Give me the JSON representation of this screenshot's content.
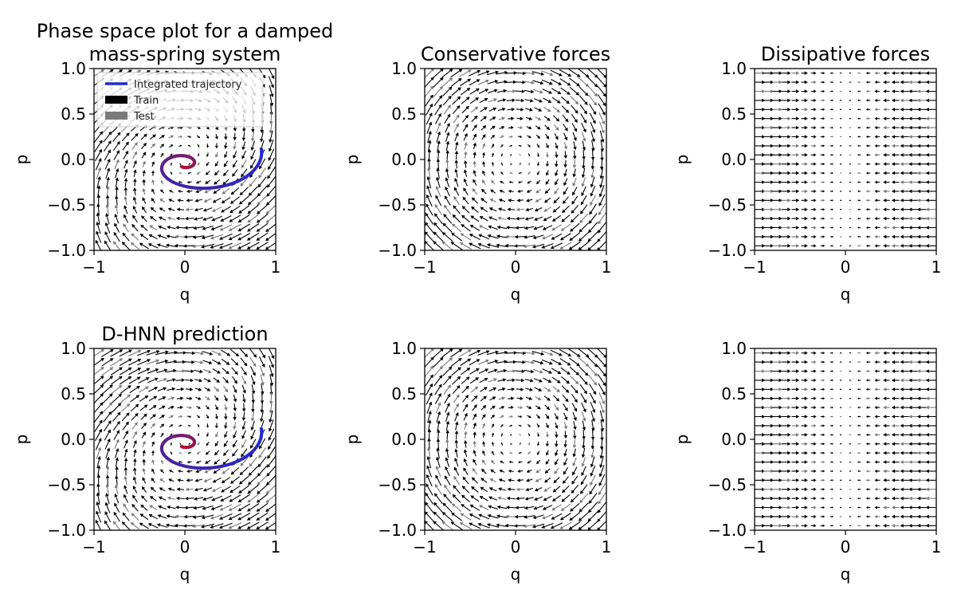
{
  "figure": {
    "background": "#ffffff",
    "train_color": "#000000",
    "test_color": "#7a7a7a",
    "trajectory_start_color": "#1f2bd0",
    "trajectory_end_color": "#b01030"
  },
  "legend": {
    "location": "upper-left",
    "entries": [
      {
        "label": "Integrated trajectory",
        "color": "#1f2bd0",
        "kind": "line"
      },
      {
        "label": "Train",
        "color": "#000000",
        "kind": "patch"
      },
      {
        "label": "Test",
        "color": "#7a7a7a",
        "kind": "patch"
      }
    ]
  },
  "chart_data": [
    {
      "id": "p1",
      "type": "quiver",
      "field": "damped",
      "title_lines": [
        "Phase space plot for a damped",
        "mass-spring system"
      ],
      "xlabel": "q",
      "ylabel": "p",
      "xlim": [
        -1,
        1
      ],
      "ylim": [
        -1,
        1
      ],
      "xticks": [
        "−1",
        "0",
        "1"
      ],
      "xtick_values": [
        -1,
        0,
        1
      ],
      "yticks": [
        "−1.0",
        "−0.5",
        "0.0",
        "0.5",
        "1.0"
      ],
      "ytick_values": [
        -1,
        -0.5,
        0,
        0.5,
        1
      ],
      "grid": false,
      "legend": true,
      "trajectory": {
        "start": [
          0.85,
          0.25
        ],
        "start_angle_deg": -125,
        "turns": 1.35,
        "center": [
          -0.02,
          -0.05
        ]
      }
    },
    {
      "id": "p2",
      "type": "quiver",
      "field": "conservative",
      "title_lines": [
        "Conservative forces"
      ],
      "xlabel": "q",
      "ylabel": "p",
      "xlim": [
        -1,
        1
      ],
      "ylim": [
        -1,
        1
      ],
      "xticks": [
        "−1",
        "0",
        "1"
      ],
      "xtick_values": [
        -1,
        0,
        1
      ],
      "yticks": [
        "−1.0",
        "−0.5",
        "0.0",
        "0.5",
        "1.0"
      ],
      "ytick_values": [
        -1,
        -0.5,
        0,
        0.5,
        1
      ],
      "grid": false
    },
    {
      "id": "p3",
      "type": "quiver",
      "field": "dissipative",
      "title_lines": [
        "Dissipative forces"
      ],
      "xlabel": "q",
      "ylabel": "p",
      "xlim": [
        -1,
        1
      ],
      "ylim": [
        -1,
        1
      ],
      "xticks": [
        "−1",
        "0",
        "1"
      ],
      "xtick_values": [
        -1,
        0,
        1
      ],
      "yticks": [
        "−1.0",
        "−0.5",
        "0.0",
        "0.5",
        "1.0"
      ],
      "ytick_values": [
        -1,
        -0.5,
        0,
        0.5,
        1
      ],
      "grid": false
    },
    {
      "id": "p4",
      "type": "quiver",
      "field": "damped",
      "title_lines": [
        "D-HNN prediction"
      ],
      "xlabel": "q",
      "ylabel": "p",
      "xlim": [
        -1,
        1
      ],
      "ylim": [
        -1,
        1
      ],
      "xticks": [
        "−1",
        "0",
        "1"
      ],
      "xtick_values": [
        -1,
        0,
        1
      ],
      "yticks": [
        "−1.0",
        "−0.5",
        "0.0",
        "0.5",
        "1.0"
      ],
      "ytick_values": [
        -1,
        -0.5,
        0,
        0.5,
        1
      ],
      "grid": false,
      "trajectory": {
        "start": [
          0.85,
          0.25
        ],
        "start_angle_deg": -125,
        "turns": 1.35,
        "center": [
          -0.02,
          -0.05
        ]
      }
    },
    {
      "id": "p5",
      "type": "quiver",
      "field": "conservative",
      "title_lines": [],
      "xlabel": "q",
      "ylabel": "p",
      "xlim": [
        -1,
        1
      ],
      "ylim": [
        -1,
        1
      ],
      "xticks": [
        "−1",
        "0",
        "1"
      ],
      "xtick_values": [
        -1,
        0,
        1
      ],
      "yticks": [
        "−1.0",
        "−0.5",
        "0.0",
        "0.5",
        "1.0"
      ],
      "ytick_values": [
        -1,
        -0.5,
        0,
        0.5,
        1
      ],
      "grid": false
    },
    {
      "id": "p6",
      "type": "quiver",
      "field": "dissipative",
      "title_lines": [],
      "xlabel": "q",
      "ylabel": "p",
      "xlim": [
        -1,
        1
      ],
      "ylim": [
        -1,
        1
      ],
      "xticks": [
        "−1",
        "0",
        "1"
      ],
      "xtick_values": [
        -1,
        0,
        1
      ],
      "yticks": [
        "−1.0",
        "−0.5",
        "0.0",
        "0.5",
        "1.0"
      ],
      "ytick_values": [
        -1,
        -0.5,
        0,
        0.5,
        1
      ],
      "grid": false
    }
  ]
}
